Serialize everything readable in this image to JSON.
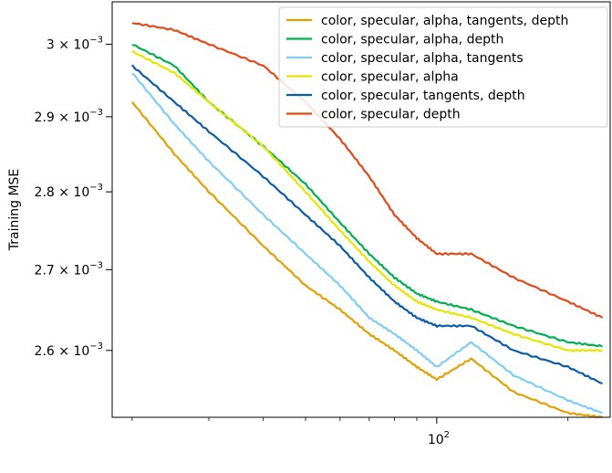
{
  "chart_data": {
    "type": "line",
    "title": "",
    "xlabel": "",
    "ylabel": "Training MSE",
    "xscale": "log",
    "yscale": "log",
    "xlim": [
      18,
      250
    ],
    "ylim": [
      0.00252,
      0.00306
    ],
    "x_major_ticks": [
      {
        "value": 100,
        "base": "10",
        "exp": "2"
      }
    ],
    "x_minor_ticks": [
      20,
      30,
      40,
      50,
      60,
      70,
      80,
      90,
      200
    ],
    "y_ticks": [
      {
        "value": 0.0026,
        "mantissa": "2.6",
        "exp": "−3"
      },
      {
        "value": 0.0027,
        "mantissa": "2.7",
        "exp": "−3"
      },
      {
        "value": 0.0028,
        "mantissa": "2.8",
        "exp": "−3"
      },
      {
        "value": 0.0029,
        "mantissa": "2.9",
        "exp": "−3"
      },
      {
        "value": 0.003,
        "mantissa": "3",
        "exp": "−3"
      }
    ],
    "grid": false,
    "legend_position": "top-right",
    "x": [
      20,
      25,
      30,
      40,
      50,
      60,
      70,
      80,
      90,
      100,
      120,
      150,
      200,
      240
    ],
    "series": [
      {
        "name": "color, specular, alpha, tangents, depth",
        "color": "#E69F00",
        "values": [
          0.00292,
          0.00285,
          0.0028,
          0.00273,
          0.00268,
          0.00265,
          0.00262,
          0.0026,
          0.00258,
          0.002565,
          0.00259,
          0.00255,
          0.002525,
          0.00252
        ]
      },
      {
        "name": "color, specular, alpha, depth",
        "color": "#00B050",
        "values": [
          0.003,
          0.00297,
          0.00292,
          0.00286,
          0.00281,
          0.00276,
          0.00272,
          0.00269,
          0.00267,
          0.00266,
          0.00265,
          0.00263,
          0.00261,
          0.002605
        ]
      },
      {
        "name": "color, specular, alpha, tangents",
        "color": "#7FCCF5",
        "values": [
          0.00296,
          0.00289,
          0.00284,
          0.00277,
          0.00272,
          0.00268,
          0.00264,
          0.00262,
          0.0026,
          0.00258,
          0.00261,
          0.00257,
          0.00254,
          0.002525
        ]
      },
      {
        "name": "color, specular, alpha",
        "color": "#E5E500",
        "values": [
          0.00299,
          0.00296,
          0.00292,
          0.00286,
          0.0028,
          0.00275,
          0.00271,
          0.00268,
          0.00266,
          0.00265,
          0.00264,
          0.00262,
          0.0026,
          0.0026
        ]
      },
      {
        "name": "color, specular, tangents, depth",
        "color": "#0A5CA8",
        "values": [
          0.00297,
          0.00292,
          0.00288,
          0.00282,
          0.00277,
          0.00273,
          0.00269,
          0.00266,
          0.00264,
          0.00263,
          0.00263,
          0.0026,
          0.00258,
          0.00256
        ]
      },
      {
        "name": "color, specular, depth",
        "color": "#E34A17",
        "values": [
          0.00303,
          0.00302,
          0.003,
          0.00297,
          0.00292,
          0.00287,
          0.00282,
          0.00277,
          0.00274,
          0.00272,
          0.00272,
          0.00269,
          0.00266,
          0.00264
        ]
      }
    ]
  }
}
